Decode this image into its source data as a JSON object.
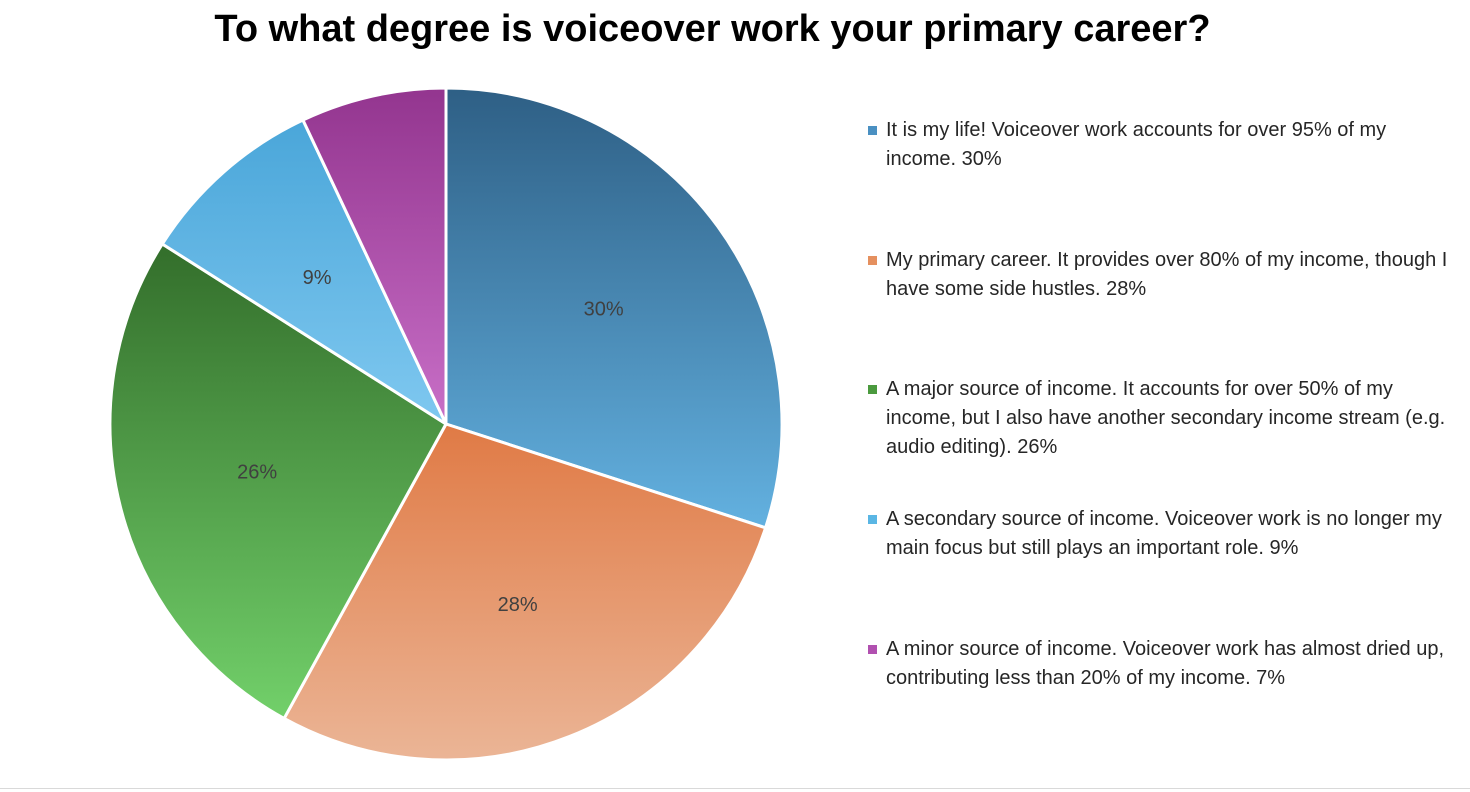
{
  "chart_data": {
    "type": "pie",
    "title": "To what degree is voiceover work your primary career?",
    "slices": [
      {
        "label": "It is my life! Voiceover work accounts for over 95% of my income.",
        "value": 30,
        "value_label": "30%",
        "legend_text": "It is my life! Voiceover work accounts for over 95% of my income. 30%",
        "color_top": "#2e5f85",
        "color_bottom": "#63b1e0",
        "swatch": "#4a90c2"
      },
      {
        "label": "My primary career. It provides over 80% of my income, though I have some side hustles.",
        "value": 28,
        "value_label": "28%",
        "legend_text": "My primary career. It provides over 80% of my income, though I have some side hustles. 28%",
        "color_top": "#e07a45",
        "color_bottom": "#ebb596",
        "swatch": "#e5905f"
      },
      {
        "label": "A major source of income. It accounts for over 50% of my income, but I also have another secondary income stream (e.g. audio editing).",
        "value": 26,
        "value_label": "26%",
        "legend_text": "A major source of income. It accounts for over 50% of my income, but I also have another secondary income stream (e.g. audio editing). 26%",
        "color_top": "#336e2b",
        "color_bottom": "#72d06a",
        "swatch": "#4b9a3e"
      },
      {
        "label": "A secondary source of income. Voiceover work is no longer my main focus but still plays an important role.",
        "value": 9,
        "value_label": "9%",
        "legend_text": "A secondary source of income. Voiceover work is no longer my main focus but still plays an important role. 9%",
        "color_top": "#4aa6d9",
        "color_bottom": "#7fc8f0",
        "swatch": "#5ab6e4"
      },
      {
        "label": "A minor source of income. Voiceover work has almost dried up, contributing less than 20% of my income.",
        "value": 7,
        "value_label": "7%",
        "legend_text": "A minor source of income. Voiceover work has almost dried up, contributing less than 20% of my income. 7%",
        "color_top": "#93358f",
        "color_bottom": "#c86fc7",
        "swatch": "#b150b0"
      }
    ],
    "legend_position": "right",
    "start_angle_deg": 0,
    "direction": "clockwise"
  }
}
